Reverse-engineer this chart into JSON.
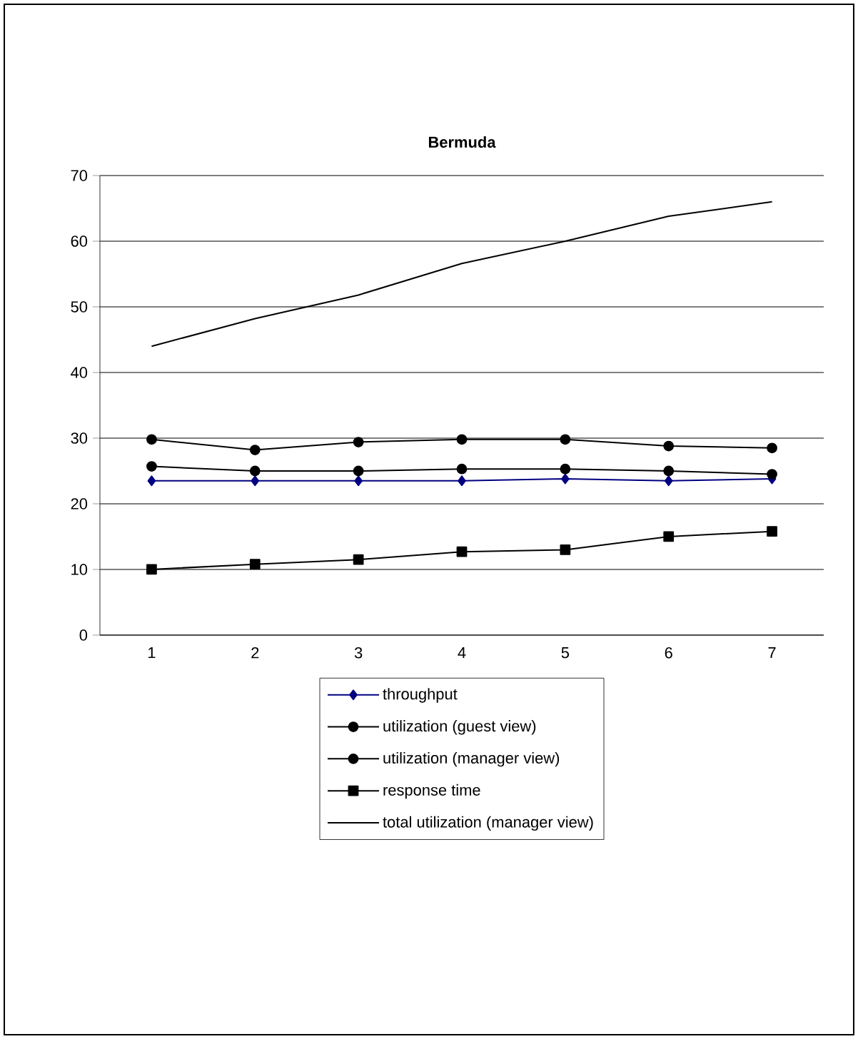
{
  "chart_data": {
    "type": "line",
    "title": "Bermuda",
    "categories": [
      "1",
      "2",
      "3",
      "4",
      "5",
      "6",
      "7"
    ],
    "series": [
      {
        "name": "throughput",
        "color": "#000080",
        "marker": "diamond",
        "values": [
          23.5,
          23.5,
          23.5,
          23.5,
          23.8,
          23.5,
          23.8
        ]
      },
      {
        "name": "utilization (guest view)",
        "color": "#000000",
        "marker": "circle",
        "values": [
          29.8,
          28.2,
          29.4,
          29.8,
          29.8,
          28.8,
          28.5
        ]
      },
      {
        "name": "utilization (manager view)",
        "color": "#000000",
        "marker": "circle",
        "values": [
          25.7,
          25.0,
          25.0,
          25.3,
          25.3,
          25.0,
          24.5
        ]
      },
      {
        "name": "response time",
        "color": "#000000",
        "marker": "square",
        "values": [
          10.0,
          10.8,
          11.5,
          12.7,
          13.0,
          15.0,
          15.8
        ]
      },
      {
        "name": "total utilization (manager view)",
        "color": "#000000",
        "marker": "none",
        "values": [
          44.0,
          48.2,
          51.8,
          56.6,
          60.0,
          63.8,
          66.0
        ]
      }
    ],
    "ylim": [
      0,
      70
    ],
    "yticks": [
      0,
      10,
      20,
      30,
      40,
      50,
      60,
      70
    ],
    "grid": "y",
    "legend": "bottom"
  }
}
